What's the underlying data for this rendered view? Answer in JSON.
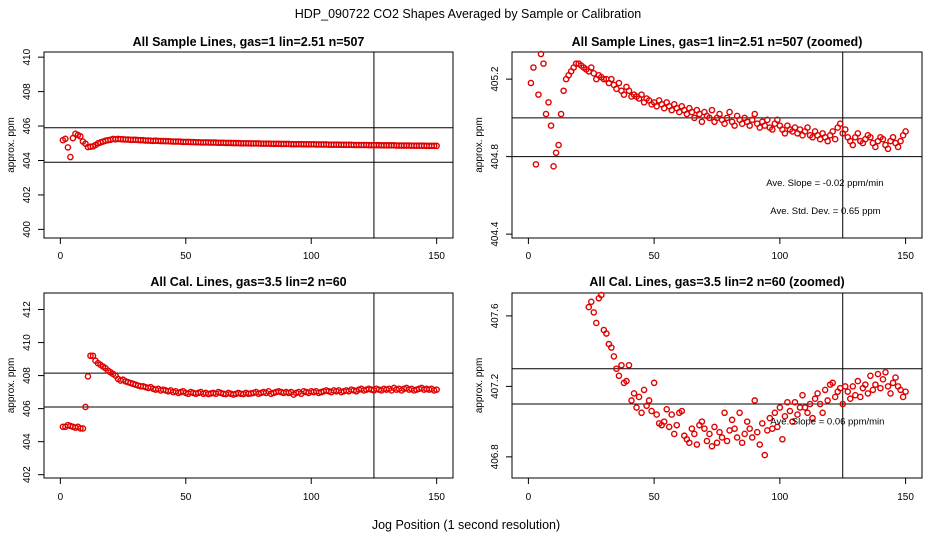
{
  "figure_title": "HDP_090722  CO2 Shapes Averaged by Sample or Calibration",
  "xlabel": "Jog Position (1 second resolution)",
  "colors": {
    "points": "#e00000",
    "lines": "#000000"
  },
  "chart_data": [
    {
      "type": "scatter",
      "title": "All Sample Lines, gas=1 lin=2.51 n=507",
      "ylabel": "approx. ppm",
      "xlim": [
        0,
        150
      ],
      "ylim": [
        399.5,
        410.3
      ],
      "xticks": [
        "0",
        "50",
        "100",
        "150"
      ],
      "yticks": [
        "400",
        "402",
        "404",
        "406",
        "408",
        "410"
      ],
      "hlines": [
        405.9,
        403.9
      ],
      "vline": 125,
      "annotations": [],
      "x": [
        1,
        2,
        3,
        4,
        5,
        6,
        7,
        8,
        9,
        10,
        11,
        12,
        13,
        14,
        15,
        16,
        17,
        18,
        19,
        20,
        21,
        22,
        23,
        24,
        25,
        26,
        27,
        28,
        29,
        30,
        31,
        32,
        33,
        34,
        35,
        36,
        37,
        38,
        39,
        40,
        41,
        42,
        43,
        44,
        45,
        46,
        47,
        48,
        49,
        50,
        51,
        52,
        53,
        54,
        55,
        56,
        57,
        58,
        59,
        60,
        61,
        62,
        63,
        64,
        65,
        66,
        67,
        68,
        69,
        70,
        71,
        72,
        73,
        74,
        75,
        76,
        77,
        78,
        79,
        80,
        81,
        82,
        83,
        84,
        85,
        86,
        87,
        88,
        89,
        90,
        91,
        92,
        93,
        94,
        95,
        96,
        97,
        98,
        99,
        100,
        101,
        102,
        103,
        104,
        105,
        106,
        107,
        108,
        109,
        110,
        111,
        112,
        113,
        114,
        115,
        116,
        117,
        118,
        119,
        120,
        121,
        122,
        123,
        124,
        125,
        126,
        127,
        128,
        129,
        130,
        131,
        132,
        133,
        134,
        135,
        136,
        137,
        138,
        139,
        140,
        141,
        142,
        143,
        144,
        145,
        146,
        147,
        148,
        149,
        150
      ],
      "y": [
        405.18,
        405.26,
        404.76,
        404.2,
        405.3,
        405.55,
        405.48,
        405.4,
        405.1,
        404.98,
        404.78,
        404.8,
        404.82,
        404.9,
        405.0,
        405.05,
        405.1,
        405.15,
        405.18,
        405.2,
        405.25,
        405.23,
        405.25,
        405.24,
        405.23,
        405.22,
        405.22,
        405.2,
        405.2,
        405.2,
        405.19,
        405.18,
        405.18,
        405.16,
        405.16,
        405.15,
        405.14,
        405.15,
        405.14,
        405.13,
        405.13,
        405.12,
        405.12,
        405.11,
        405.1,
        405.1,
        405.1,
        405.09,
        405.08,
        405.08,
        405.08,
        405.07,
        405.07,
        405.06,
        405.06,
        405.05,
        405.05,
        405.05,
        405.05,
        405.04,
        405.04,
        405.04,
        405.03,
        405.03,
        405.03,
        405.02,
        405.02,
        405.02,
        405.01,
        405.01,
        405.01,
        405.0,
        405.0,
        405.0,
        405.0,
        404.99,
        404.99,
        404.99,
        404.99,
        404.98,
        404.98,
        404.98,
        404.98,
        404.97,
        404.97,
        404.97,
        404.97,
        404.96,
        404.96,
        404.96,
        404.96,
        404.95,
        404.95,
        404.95,
        404.95,
        404.95,
        404.94,
        404.94,
        404.94,
        404.94,
        404.94,
        404.93,
        404.93,
        404.93,
        404.93,
        404.93,
        404.92,
        404.92,
        404.92,
        404.92,
        404.92,
        404.91,
        404.91,
        404.91,
        404.91,
        404.91,
        404.9,
        404.9,
        404.9,
        404.9,
        404.9,
        404.9,
        404.89,
        404.89,
        404.89,
        404.89,
        404.89,
        404.88,
        404.88,
        404.88,
        404.88,
        404.88,
        404.88,
        404.87,
        404.87,
        404.87,
        404.87,
        404.87,
        404.87,
        404.86,
        404.86,
        404.86,
        404.86,
        404.86,
        404.86,
        404.85,
        404.85,
        404.85,
        404.85,
        404.85
      ]
    },
    {
      "type": "scatter",
      "title": "All Sample Lines, gas=1 lin=2.51 n=507 (zoomed)",
      "ylabel": "approx. ppm",
      "xlim": [
        0,
        150
      ],
      "ylim": [
        404.38,
        405.34
      ],
      "xticks": [
        "0",
        "50",
        "100",
        "150"
      ],
      "yticks": [
        "404.4",
        "404.8",
        "405.2"
      ],
      "hlines": [
        405.0,
        404.8
      ],
      "vline": 125,
      "annotations": [
        "Ave. Slope =  -0.02  ppm/min",
        "Ave. Std. Dev. =  0.65  ppm"
      ],
      "x": [
        1,
        2,
        3,
        4,
        5,
        6,
        7,
        8,
        9,
        10,
        11,
        12,
        13,
        14,
        15,
        16,
        17,
        18,
        19,
        20,
        21,
        22,
        23,
        24,
        25,
        26,
        27,
        28,
        29,
        30,
        31,
        32,
        33,
        34,
        35,
        36,
        37,
        38,
        39,
        40,
        41,
        42,
        43,
        44,
        45,
        46,
        47,
        48,
        49,
        50,
        51,
        52,
        53,
        54,
        55,
        56,
        57,
        58,
        59,
        60,
        61,
        62,
        63,
        64,
        65,
        66,
        67,
        68,
        69,
        70,
        71,
        72,
        73,
        74,
        75,
        76,
        77,
        78,
        79,
        80,
        81,
        82,
        83,
        84,
        85,
        86,
        87,
        88,
        89,
        90,
        91,
        92,
        93,
        94,
        95,
        96,
        97,
        98,
        99,
        100,
        101,
        102,
        103,
        104,
        105,
        106,
        107,
        108,
        109,
        110,
        111,
        112,
        113,
        114,
        115,
        116,
        117,
        118,
        119,
        120,
        121,
        122,
        123,
        124,
        125,
        126,
        127,
        128,
        129,
        130,
        131,
        132,
        133,
        134,
        135,
        136,
        137,
        138,
        139,
        140,
        141,
        142,
        143,
        144,
        145,
        146,
        147,
        148,
        149,
        150
      ],
      "y": [
        405.18,
        405.26,
        404.76,
        405.12,
        405.34,
        405.28,
        405.02,
        405.08,
        404.96,
        404.75,
        404.82,
        404.86,
        405.02,
        405.14,
        405.2,
        405.22,
        405.24,
        405.26,
        405.28,
        405.28,
        405.27,
        405.26,
        405.25,
        405.24,
        405.26,
        405.23,
        405.2,
        405.22,
        405.21,
        405.2,
        405.2,
        405.18,
        405.2,
        405.17,
        405.15,
        405.18,
        405.14,
        405.12,
        405.16,
        405.14,
        405.11,
        405.12,
        405.11,
        405.1,
        405.12,
        405.08,
        405.1,
        405.09,
        405.07,
        405.08,
        405.06,
        405.09,
        405.07,
        405.05,
        405.08,
        405.06,
        405.04,
        405.07,
        405.05,
        405.03,
        405.06,
        405.04,
        405.02,
        405.05,
        405.03,
        405.0,
        405.04,
        405.02,
        404.98,
        405.03,
        405.01,
        405.0,
        405.04,
        404.98,
        405.0,
        405.02,
        404.99,
        404.97,
        405.0,
        405.03,
        404.98,
        404.96,
        405.01,
        404.99,
        404.97,
        405.0,
        404.98,
        404.96,
        404.99,
        405.02,
        404.97,
        404.95,
        404.98,
        404.96,
        404.99,
        404.95,
        404.94,
        404.97,
        404.99,
        404.96,
        404.94,
        404.92,
        404.96,
        404.94,
        404.93,
        404.95,
        404.92,
        404.94,
        404.91,
        404.93,
        404.95,
        404.91,
        404.9,
        404.93,
        404.91,
        404.89,
        404.92,
        404.9,
        404.88,
        404.91,
        404.93,
        404.89,
        404.95,
        404.97,
        404.92,
        404.94,
        404.9,
        404.88,
        404.86,
        404.9,
        404.92,
        404.88,
        404.87,
        404.89,
        404.91,
        404.9,
        404.87,
        404.85,
        404.88,
        404.9,
        404.89,
        404.86,
        404.84,
        404.88,
        404.9,
        404.87,
        404.85,
        404.88,
        404.91,
        404.93
      ]
    },
    {
      "type": "scatter",
      "title": "All Cal. Lines, gas=3.5 lin=2 n=60",
      "ylabel": "approx. ppm",
      "xlim": [
        0,
        150
      ],
      "ylim": [
        401.8,
        413.0
      ],
      "xticks": [
        "0",
        "50",
        "100",
        "150"
      ],
      "yticks": [
        "402",
        "404",
        "406",
        "408",
        "410",
        "412"
      ],
      "hlines": [
        408.15,
        406.1
      ],
      "vline": 125,
      "annotations": [],
      "x": [
        1,
        2,
        3,
        4,
        5,
        6,
        7,
        8,
        9,
        10,
        11,
        12,
        13,
        14,
        15,
        16,
        17,
        18,
        19,
        20,
        21,
        22,
        23,
        24,
        25,
        26,
        27,
        28,
        29,
        30,
        31,
        32,
        33,
        34,
        35,
        36,
        37,
        38,
        39,
        40,
        41,
        42,
        43,
        44,
        45,
        46,
        47,
        48,
        49,
        50,
        51,
        52,
        53,
        54,
        55,
        56,
        57,
        58,
        59,
        60,
        61,
        62,
        63,
        64,
        65,
        66,
        67,
        68,
        69,
        70,
        71,
        72,
        73,
        74,
        75,
        76,
        77,
        78,
        79,
        80,
        81,
        82,
        83,
        84,
        85,
        86,
        87,
        88,
        89,
        90,
        91,
        92,
        93,
        94,
        95,
        96,
        97,
        98,
        99,
        100,
        101,
        102,
        103,
        104,
        105,
        106,
        107,
        108,
        109,
        110,
        111,
        112,
        113,
        114,
        115,
        116,
        117,
        118,
        119,
        120,
        121,
        122,
        123,
        124,
        125,
        126,
        127,
        128,
        129,
        130,
        131,
        132,
        133,
        134,
        135,
        136,
        137,
        138,
        139,
        140,
        141,
        142,
        143,
        144,
        145,
        146,
        147,
        148,
        149,
        150
      ],
      "y": [
        404.9,
        404.9,
        405.0,
        404.95,
        404.9,
        404.85,
        404.9,
        404.8,
        404.8,
        406.1,
        407.95,
        409.2,
        409.2,
        408.9,
        408.75,
        408.65,
        408.55,
        408.45,
        408.3,
        408.2,
        408.1,
        408.0,
        407.8,
        407.7,
        407.75,
        407.65,
        407.6,
        407.55,
        407.5,
        407.45,
        407.4,
        407.35,
        407.35,
        407.3,
        407.25,
        407.3,
        407.2,
        407.15,
        407.2,
        407.1,
        407.15,
        407.1,
        407.05,
        407.1,
        407.0,
        407.05,
        406.95,
        407.0,
        407.05,
        406.95,
        406.9,
        407.0,
        406.95,
        406.9,
        406.95,
        407.0,
        406.9,
        406.95,
        406.88,
        406.92,
        406.95,
        406.9,
        407.0,
        406.95,
        406.9,
        406.88,
        406.95,
        406.9,
        406.85,
        406.9,
        406.95,
        406.9,
        406.88,
        406.95,
        406.9,
        406.92,
        406.95,
        407.0,
        406.9,
        406.95,
        407.0,
        406.95,
        407.05,
        406.9,
        406.95,
        407.0,
        407.05,
        407.0,
        406.95,
        407.0,
        406.95,
        407.0,
        406.85,
        406.95,
        407.0,
        406.9,
        407.05,
        407.0,
        406.95,
        407.05,
        407.0,
        407.05,
        406.95,
        407.0,
        407.05,
        407.1,
        407.05,
        407.0,
        407.1,
        407.05,
        407.1,
        407.0,
        407.05,
        407.1,
        407.05,
        407.15,
        407.1,
        407.05,
        407.15,
        407.2,
        407.1,
        407.15,
        407.2,
        407.15,
        407.1,
        407.2,
        407.15,
        407.1,
        407.2,
        407.15,
        407.2,
        407.1,
        407.25,
        407.15,
        407.2,
        407.1,
        407.2,
        407.25,
        407.15,
        407.2,
        407.1,
        407.15,
        407.2,
        407.25,
        407.15,
        407.2,
        407.15,
        407.2,
        407.1,
        407.15
      ]
    },
    {
      "type": "scatter",
      "title": "All Cal. Lines, gas=3.5 lin=2 n=60 (zoomed)",
      "ylabel": "approx. ppm",
      "xlim": [
        0,
        150
      ],
      "ylim": [
        406.68,
        407.73
      ],
      "xticks": [
        "0",
        "50",
        "100",
        "150"
      ],
      "yticks": [
        "406.8",
        "407.2",
        "407.6"
      ],
      "hlines": [
        407.3,
        407.1
      ],
      "vline": 125,
      "annotations": [
        "Ave. Slope =  0.06  ppm/min"
      ],
      "x": [
        24,
        25,
        26,
        27,
        28,
        29,
        30,
        31,
        32,
        33,
        34,
        35,
        36,
        37,
        38,
        39,
        40,
        41,
        42,
        43,
        44,
        45,
        46,
        47,
        48,
        49,
        50,
        51,
        52,
        53,
        54,
        55,
        56,
        57,
        58,
        59,
        60,
        61,
        62,
        63,
        64,
        65,
        66,
        67,
        68,
        69,
        70,
        71,
        72,
        73,
        74,
        75,
        76,
        77,
        78,
        79,
        80,
        81,
        82,
        83,
        84,
        85,
        86,
        87,
        88,
        89,
        90,
        91,
        92,
        93,
        94,
        95,
        96,
        97,
        98,
        99,
        100,
        101,
        102,
        103,
        104,
        105,
        106,
        107,
        108,
        109,
        110,
        111,
        112,
        113,
        114,
        115,
        116,
        117,
        118,
        119,
        120,
        121,
        122,
        123,
        124,
        125,
        126,
        127,
        128,
        129,
        130,
        131,
        132,
        133,
        134,
        135,
        136,
        137,
        138,
        139,
        140,
        141,
        142,
        143,
        144,
        145,
        146,
        147,
        148,
        149,
        150
      ],
      "y": [
        407.65,
        407.68,
        407.62,
        407.56,
        407.7,
        407.73,
        407.52,
        407.5,
        407.44,
        407.42,
        407.37,
        407.3,
        407.26,
        407.32,
        407.22,
        407.23,
        407.32,
        407.12,
        407.16,
        407.08,
        407.14,
        407.05,
        407.18,
        407.09,
        407.12,
        407.06,
        407.22,
        407.04,
        406.99,
        406.98,
        407.0,
        407.07,
        406.97,
        407.04,
        406.93,
        406.98,
        407.05,
        407.06,
        406.92,
        406.9,
        406.88,
        406.96,
        406.93,
        406.87,
        406.98,
        407.0,
        406.96,
        406.89,
        406.93,
        406.86,
        406.97,
        406.88,
        406.94,
        406.91,
        407.05,
        406.89,
        406.95,
        407.01,
        406.96,
        406.91,
        407.05,
        406.88,
        406.93,
        407.0,
        406.96,
        406.91,
        407.12,
        406.94,
        406.87,
        406.99,
        406.81,
        406.95,
        407.02,
        406.96,
        407.05,
        406.97,
        407.08,
        406.9,
        407.03,
        407.11,
        407.06,
        407.0,
        407.11,
        407.04,
        407.08,
        407.15,
        407.08,
        407.05,
        407.1,
        407.02,
        407.13,
        407.16,
        407.1,
        407.05,
        407.18,
        407.12,
        407.21,
        407.22,
        407.14,
        407.17,
        407.19,
        407.1,
        407.2,
        407.17,
        407.13,
        407.2,
        407.15,
        407.23,
        407.14,
        407.19,
        407.21,
        407.16,
        407.26,
        407.18,
        407.21,
        407.27,
        407.19,
        407.24,
        407.28,
        407.2,
        407.16,
        407.22,
        407.25,
        407.2,
        407.18,
        407.14,
        407.17
      ]
    }
  ]
}
